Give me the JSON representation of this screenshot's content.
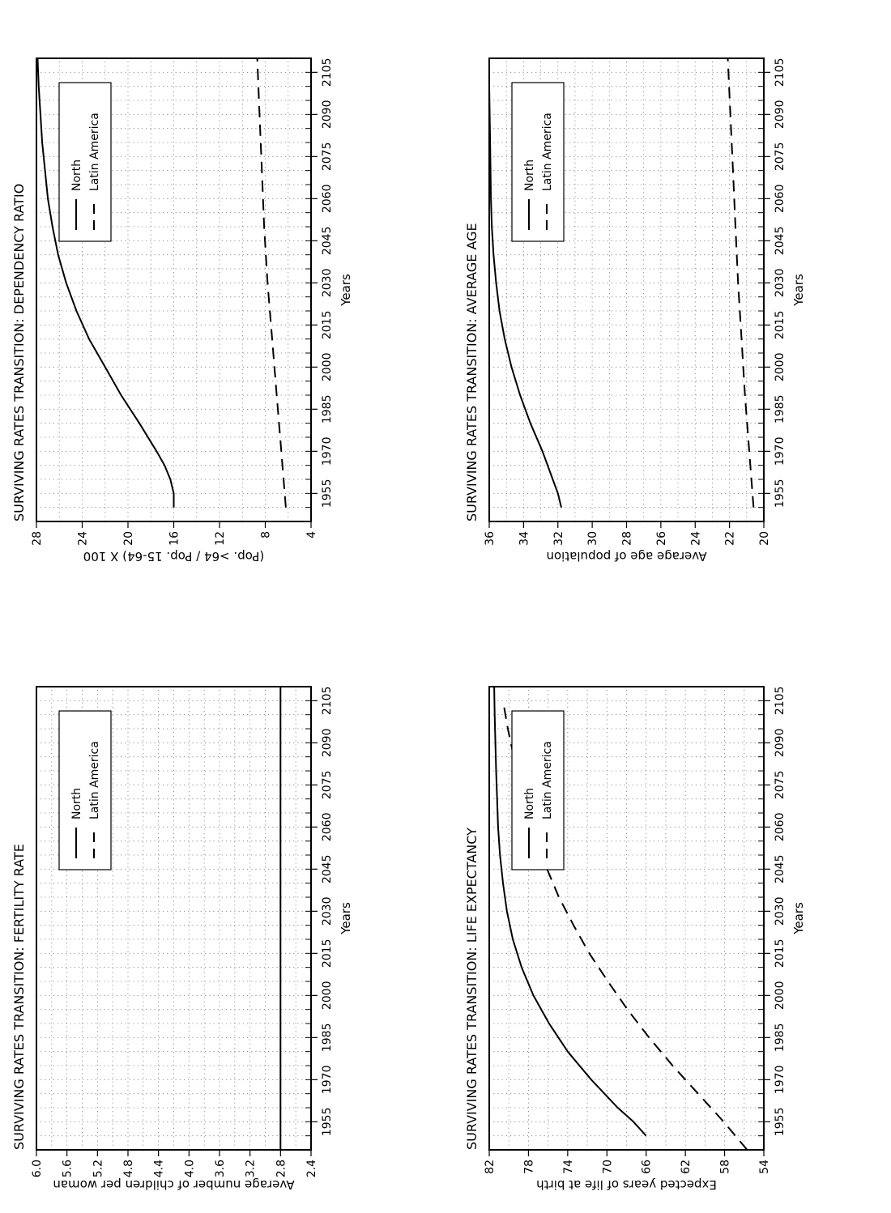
{
  "chart_data": [
    {
      "id": "fertility",
      "type": "line",
      "title": "SURVIVING RATES TRANSITION: FERTILITY RATE",
      "xlabel": "Years",
      "ylabel": "Average number of children per woman",
      "xlim": [
        1945,
        2110
      ],
      "ylim": [
        2.4,
        6.0
      ],
      "xticks": [
        1955,
        1970,
        1985,
        2000,
        2015,
        2030,
        2045,
        2060,
        2075,
        2090,
        2105
      ],
      "yticks": [
        "2.4",
        "2.8",
        "3.2",
        "3.6",
        "4.0",
        "4.4",
        "4.8",
        "5.2",
        "5.6",
        "6.0"
      ],
      "grid": true,
      "legend_position": "top-right",
      "series": [
        {
          "name": "North",
          "style": "solid",
          "x": [
            1945,
            2110
          ],
          "y": [
            2.8,
            2.8
          ]
        },
        {
          "name": "Latin America",
          "style": "dashed",
          "x": [
            1945,
            2110
          ],
          "y": [
            6.0,
            6.0
          ]
        }
      ]
    },
    {
      "id": "avgage",
      "type": "line",
      "title": "SURVIVING RATES TRANSITION: AVERAGE AGE",
      "xlabel": "Years",
      "ylabel": "Average age of population",
      "xlim": [
        1945,
        2110
      ],
      "ylim": [
        20,
        36
      ],
      "xticks": [
        1955,
        1970,
        1985,
        2000,
        2015,
        2030,
        2045,
        2060,
        2075,
        2090,
        2105
      ],
      "yticks": [
        "20",
        "22",
        "24",
        "26",
        "28",
        "30",
        "32",
        "34",
        "36"
      ],
      "grid": true,
      "legend_position": "top-right",
      "series": [
        {
          "name": "North",
          "style": "solid",
          "x": [
            1950,
            1955,
            1960,
            1970,
            1980,
            1990,
            2000,
            2010,
            2020,
            2030,
            2040,
            2050,
            2060,
            2080,
            2100,
            2110
          ],
          "y": [
            31.8,
            32.0,
            32.3,
            32.9,
            33.6,
            34.2,
            34.7,
            35.1,
            35.4,
            35.6,
            35.75,
            35.85,
            35.9,
            35.95,
            36.0,
            36.0
          ]
        },
        {
          "name": "Latin America",
          "style": "dashed",
          "x": [
            1950,
            1970,
            1990,
            2010,
            2030,
            2050,
            2070,
            2090,
            2110
          ],
          "y": [
            20.6,
            20.85,
            21.1,
            21.3,
            21.5,
            21.65,
            21.8,
            21.95,
            22.1
          ]
        }
      ]
    },
    {
      "id": "dependency",
      "type": "line",
      "title": "SURVIVING RATES TRANSITION: DEPENDENCY RATIO",
      "xlabel": "Years",
      "ylabel": "(Pop. >64 / Pop. 15-64) X 100",
      "xlim": [
        1945,
        2110
      ],
      "ylim": [
        4,
        28
      ],
      "xticks": [
        1955,
        1970,
        1985,
        2000,
        2015,
        2030,
        2045,
        2060,
        2075,
        2090,
        2105
      ],
      "yticks": [
        "4",
        "8",
        "12",
        "16",
        "20",
        "24",
        "28"
      ],
      "grid": true,
      "legend_position": "top-right",
      "series": [
        {
          "name": "North",
          "style": "solid",
          "x": [
            1950,
            1955,
            1960,
            1965,
            1970,
            1980,
            1990,
            2000,
            2010,
            2020,
            2030,
            2040,
            2050,
            2060,
            2080,
            2100,
            2110
          ],
          "y": [
            16.0,
            16.0,
            16.3,
            16.8,
            17.5,
            19.0,
            20.6,
            22.0,
            23.4,
            24.5,
            25.4,
            26.1,
            26.6,
            27.0,
            27.5,
            27.8,
            27.9
          ]
        },
        {
          "name": "Latin America",
          "style": "dashed",
          "x": [
            1950,
            1970,
            1990,
            2010,
            2030,
            2050,
            2070,
            2090,
            2110
          ],
          "y": [
            6.2,
            6.6,
            7.0,
            7.4,
            7.8,
            8.1,
            8.3,
            8.5,
            8.7
          ]
        }
      ]
    },
    {
      "id": "lifeexp",
      "type": "line",
      "title": "SURVIVING RATES TRANSITION: LIFE EXPECTANCY",
      "xlabel": "Years",
      "ylabel": "Expected years of life at birth",
      "xlim": [
        1945,
        2110
      ],
      "ylim": [
        54,
        82
      ],
      "xticks": [
        1955,
        1970,
        1985,
        2000,
        2015,
        2030,
        2045,
        2060,
        2075,
        2090,
        2105
      ],
      "yticks": [
        "54",
        "58",
        "62",
        "66",
        "70",
        "74",
        "78",
        "82"
      ],
      "grid": true,
      "legend_position": "top-right",
      "series": [
        {
          "name": "North",
          "style": "solid",
          "x": [
            1950,
            1955,
            1960,
            1970,
            1980,
            1990,
            2000,
            2010,
            2020,
            2030,
            2040,
            2050,
            2060,
            2080,
            2100,
            2110
          ],
          "y": [
            66.0,
            67.3,
            68.9,
            71.6,
            74.0,
            75.9,
            77.5,
            78.7,
            79.6,
            80.2,
            80.6,
            80.9,
            81.1,
            81.3,
            81.45,
            81.5
          ]
        },
        {
          "name": "Latin America",
          "style": "dashed",
          "x": [
            1945,
            1955,
            1965,
            1975,
            1985,
            1995,
            2005,
            2015,
            2025,
            2035,
            2045,
            2055,
            2065,
            2075,
            2085,
            2095,
            2105
          ],
          "y": [
            55.7,
            58.1,
            60.7,
            63.3,
            65.7,
            67.9,
            69.9,
            71.8,
            73.4,
            74.9,
            76.1,
            77.2,
            78.1,
            78.9,
            79.5,
            80.1,
            80.6
          ]
        }
      ]
    }
  ]
}
